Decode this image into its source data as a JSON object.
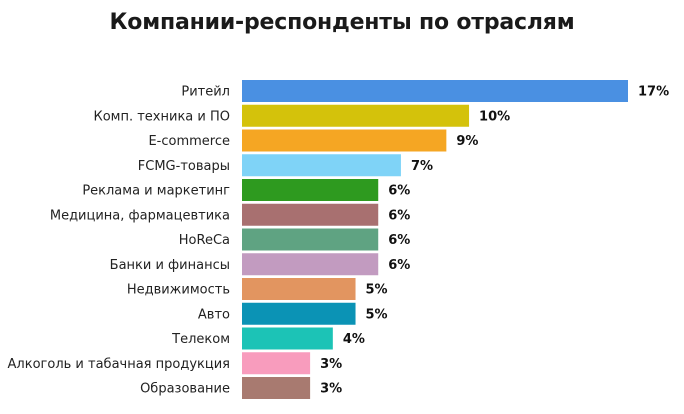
{
  "chart_data": {
    "type": "bar",
    "orientation": "horizontal",
    "title": "Компании-респонденты по отраслям",
    "xlabel": "",
    "ylabel": "",
    "grid": false,
    "legend": "none",
    "xlim": [
      0,
      17
    ],
    "categories": [
      "Ритейл",
      "Комп. техника и ПО",
      "E-commerce",
      "FCMG-товары",
      "Реклама и маркетинг",
      "Медицина, фармацевтика",
      "HoReCa",
      "Банки и финансы",
      "Недвижимость",
      "Авто",
      "Телеком",
      "Алкоголь и табачная продукция",
      "Образование"
    ],
    "values": [
      17,
      10,
      9,
      7,
      6,
      6,
      6,
      6,
      5,
      5,
      4,
      3,
      3
    ],
    "value_labels": [
      "17%",
      "10%",
      "9%",
      "7%",
      "6%",
      "6%",
      "6%",
      "6%",
      "5%",
      "5%",
      "4%",
      "3%",
      "3%"
    ],
    "colors": [
      "#4a90e2",
      "#d4c20b",
      "#f5a623",
      "#7fd3f7",
      "#2e9a1f",
      "#a87070",
      "#5fa382",
      "#c29bc0",
      "#e29560",
      "#0b93b5",
      "#1cc3b6",
      "#f89cbd",
      "#a87a70"
    ]
  }
}
